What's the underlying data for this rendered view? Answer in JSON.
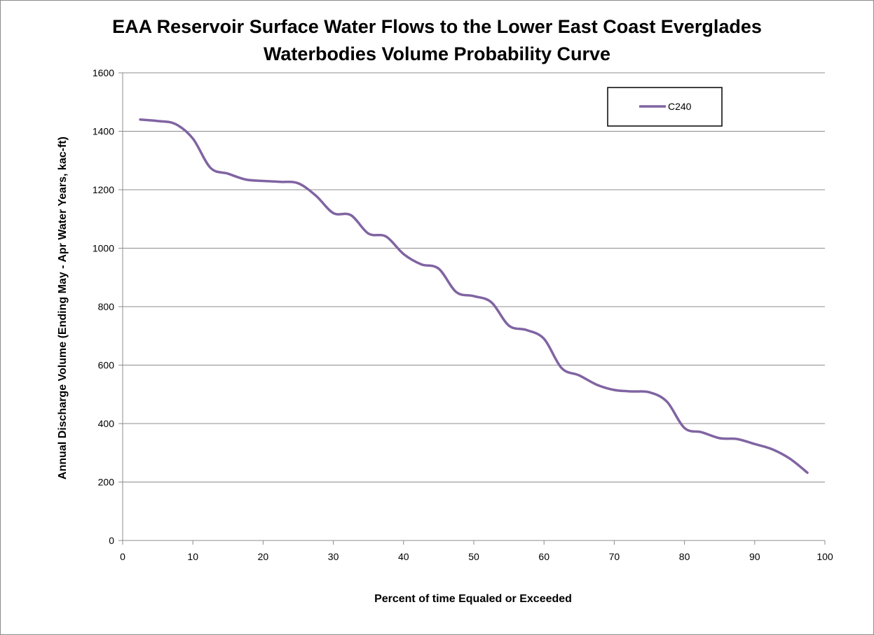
{
  "chart_data": {
    "type": "line",
    "title": "EAA Reservoir Surface Water Flows to the Lower East Coast Everglades",
    "subtitle": "Waterbodies Volume Probability Curve",
    "xlabel": "Percent of time Equaled or Exceeded",
    "ylabel": "Annual Discharge Volume (Ending May - Apr Water Years, kac-ft)",
    "xlim": [
      0,
      100
    ],
    "ylim": [
      0,
      1600
    ],
    "x_ticks": [
      "0",
      "10",
      "20",
      "30",
      "40",
      "50",
      "60",
      "70",
      "80",
      "90",
      "100"
    ],
    "y_ticks": [
      "0",
      "200",
      "400",
      "600",
      "800",
      "1000",
      "1200",
      "1400",
      "1600"
    ],
    "grid": "horizontal",
    "legend_position": "top-right",
    "series": [
      {
        "name": "C240",
        "color": "#8064a2",
        "x": [
          2.5,
          5,
          7.5,
          10,
          12.5,
          15,
          17.5,
          20,
          22.5,
          25,
          27.5,
          30,
          32.5,
          35,
          37.5,
          40,
          42.5,
          45,
          47.5,
          50,
          52.5,
          55,
          57.5,
          60,
          62.5,
          65,
          67.5,
          70,
          72.5,
          75,
          77.5,
          80,
          82.5,
          85,
          87.5,
          90,
          92.5,
          95,
          97.5
        ],
        "values": [
          1440,
          1435,
          1425,
          1375,
          1275,
          1255,
          1235,
          1230,
          1227,
          1222,
          1180,
          1120,
          1113,
          1050,
          1040,
          980,
          945,
          930,
          850,
          836,
          815,
          735,
          720,
          690,
          590,
          565,
          533,
          515,
          510,
          507,
          475,
          385,
          370,
          350,
          347,
          330,
          312,
          280,
          232
        ]
      }
    ]
  }
}
